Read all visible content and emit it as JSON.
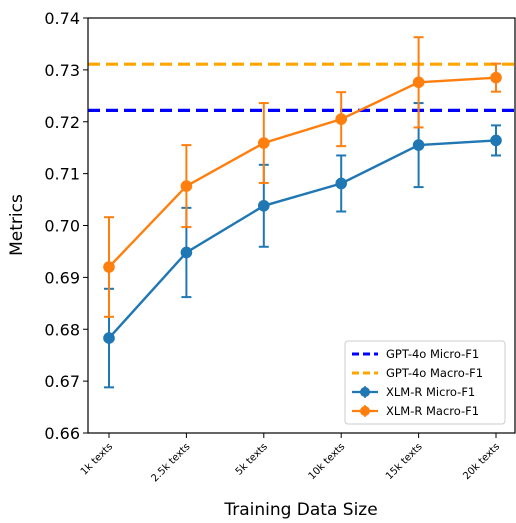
{
  "chart_data": {
    "type": "line",
    "xlabel": "Training Data Size",
    "ylabel": "Metrics",
    "categories": [
      "1k texts",
      "2.5k texts",
      "5k texts",
      "10k texts",
      "15k texts",
      "20k texts"
    ],
    "ylim": [
      0.66,
      0.74
    ],
    "yticks": [
      "0.66",
      "0.67",
      "0.68",
      "0.69",
      "0.70",
      "0.71",
      "0.72",
      "0.73",
      "0.74"
    ],
    "grid": false,
    "legend_position": "bottom-right",
    "series": [
      {
        "name": "XLM-R Micro-F1",
        "color": "#1f77b4",
        "values": [
          0.6783,
          0.6948,
          0.7038,
          0.7081,
          0.7155,
          0.7164
        ],
        "error": [
          0.0095,
          0.0086,
          0.0079,
          0.0054,
          0.0081,
          0.0029
        ]
      },
      {
        "name": "XLM-R Macro-F1",
        "color": "#ff7f0e",
        "values": [
          0.692,
          0.7076,
          0.7159,
          0.7205,
          0.7276,
          0.7285
        ],
        "error": [
          0.0096,
          0.0079,
          0.0077,
          0.0052,
          0.0087,
          0.0027
        ]
      }
    ],
    "reference_lines": [
      {
        "name": "GPT-4o Micro-F1",
        "value": 0.7222,
        "color": "#0000ff",
        "style": "dashed"
      },
      {
        "name": "GPT-4o Macro-F1",
        "value": 0.7311,
        "color": "#ffa500",
        "style": "dashed"
      }
    ],
    "legend": [
      "GPT-4o Micro-F1",
      "GPT-4o Macro-F1",
      "XLM-R Micro-F1",
      "XLM-R Macro-F1"
    ]
  }
}
